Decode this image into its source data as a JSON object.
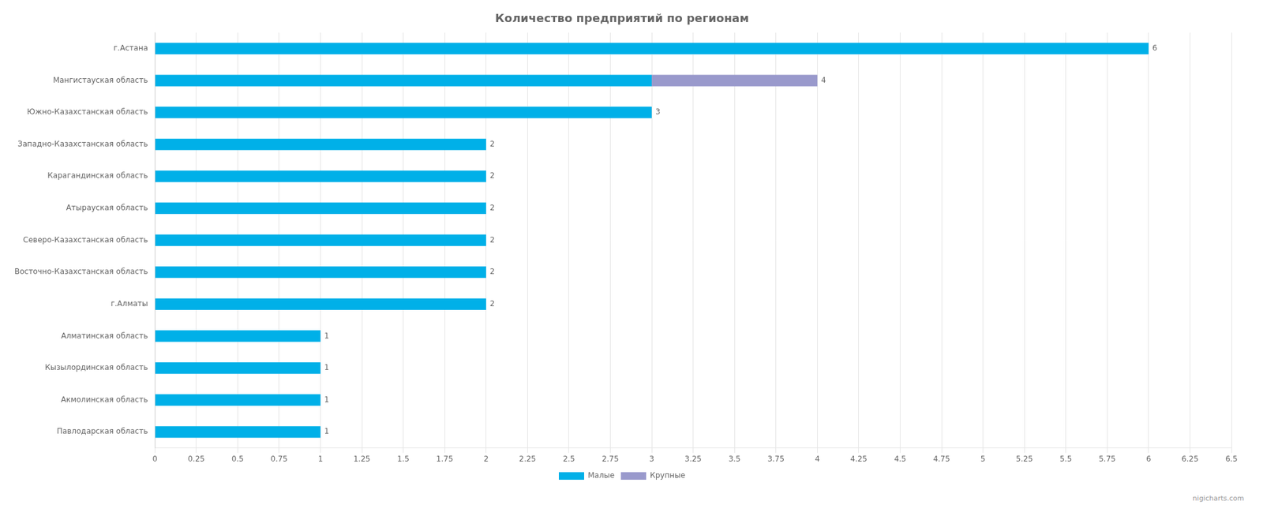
{
  "chart_data": {
    "type": "bar",
    "orientation": "horizontal",
    "stacked": true,
    "title": "Количество предприятий по регионам",
    "categories": [
      "г.Астана",
      "Мангистауская область",
      "Южно-Казахстанская область",
      "Западно-Казахстанская область",
      "Карагандинская область",
      "Атырауская область",
      "Северо-Казахстанская область",
      "Восточно-Казахстанская область",
      "г.Алматы",
      "Алматинская область",
      "Кызылординская область",
      "Акмолинская область",
      "Павлодарская область"
    ],
    "series": [
      {
        "name": "Малые",
        "color": "#00b0e8",
        "values": [
          6,
          3,
          3,
          2,
          2,
          2,
          2,
          2,
          2,
          1,
          1,
          1,
          1
        ]
      },
      {
        "name": "Крупные",
        "color": "#9999cc",
        "values": [
          0,
          1,
          0,
          0,
          0,
          0,
          0,
          0,
          0,
          0,
          0,
          0,
          0
        ]
      }
    ],
    "totals": [
      6,
      4,
      3,
      2,
      2,
      2,
      2,
      2,
      2,
      1,
      1,
      1,
      1
    ],
    "xlim": [
      0,
      6.5
    ],
    "xticks": [
      0,
      0.25,
      0.5,
      0.75,
      1,
      1.25,
      1.5,
      1.75,
      2,
      2.25,
      2.5,
      2.75,
      3,
      3.25,
      3.5,
      3.75,
      4,
      4.25,
      4.5,
      4.75,
      5,
      5.25,
      5.5,
      5.75,
      6,
      6.25,
      6.5
    ],
    "grid": true,
    "legend": "bottom",
    "watermark": "nigicharts.com"
  }
}
